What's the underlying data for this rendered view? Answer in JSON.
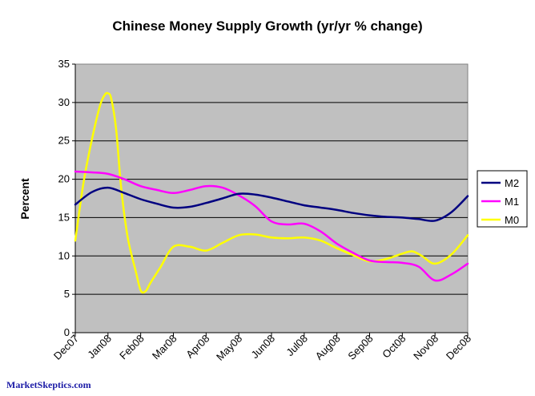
{
  "chart_data": {
    "type": "line",
    "title": "Chinese Money Supply Growth (yr/yr % change)",
    "ylabel": "Percent",
    "xlabel": "",
    "ylim": [
      0,
      35
    ],
    "yticks": [
      0,
      5,
      10,
      15,
      20,
      25,
      30,
      35
    ],
    "categories": [
      "Dec07",
      "Jan08",
      "Feb08",
      "Mar08",
      "Apr08",
      "May08",
      "Jun08",
      "Jul08",
      "Aug08",
      "Sep08",
      "Oct08",
      "Nov08",
      "Dec08"
    ],
    "grid": "horizontal",
    "legend_position": "right",
    "series": [
      {
        "name": "M2",
        "color": "#000080",
        "x": [
          0,
          0.5,
          1,
          1.5,
          2,
          2.5,
          3,
          3.5,
          4,
          4.5,
          5,
          5.5,
          6,
          6.5,
          7,
          7.5,
          8,
          8.5,
          9,
          9.5,
          10,
          10.5,
          11,
          11.5,
          12
        ],
        "values": [
          16.7,
          18.3,
          18.9,
          18.2,
          17.4,
          16.8,
          16.3,
          16.4,
          16.9,
          17.5,
          18.1,
          18.0,
          17.6,
          17.1,
          16.6,
          16.3,
          16.0,
          15.6,
          15.3,
          15.1,
          15.0,
          14.8,
          14.6,
          15.7,
          17.8
        ]
      },
      {
        "name": "M1",
        "color": "#ff00ff",
        "x": [
          0,
          0.5,
          1,
          1.5,
          2,
          2.5,
          3,
          3.5,
          4,
          4.5,
          5,
          5.5,
          6,
          6.5,
          7,
          7.5,
          8,
          8.5,
          9,
          9.5,
          10,
          10.5,
          11,
          11.5,
          12
        ],
        "values": [
          21.0,
          20.9,
          20.7,
          20.0,
          19.1,
          18.6,
          18.2,
          18.6,
          19.1,
          18.9,
          17.9,
          16.5,
          14.5,
          14.1,
          14.2,
          13.2,
          11.6,
          10.4,
          9.4,
          9.2,
          9.1,
          8.6,
          6.8,
          7.6,
          9.0
        ]
      },
      {
        "name": "M0",
        "color": "#ffff00",
        "x": [
          0,
          0.25,
          0.5,
          0.75,
          0.9,
          1.0,
          1.1,
          1.25,
          1.4,
          1.6,
          1.85,
          2.0,
          2.15,
          2.3,
          2.6,
          3.0,
          3.5,
          4.0,
          4.5,
          5.0,
          5.5,
          6.0,
          6.5,
          7.0,
          7.5,
          8.0,
          8.5,
          9.0,
          9.5,
          10.0,
          10.3,
          10.6,
          11.0,
          11.5,
          12.0
        ],
        "values": [
          12.0,
          19.5,
          25.0,
          29.5,
          31.0,
          31.2,
          30.5,
          26.5,
          19.0,
          12.5,
          8.0,
          5.5,
          5.4,
          6.5,
          8.5,
          11.2,
          11.2,
          10.7,
          11.7,
          12.7,
          12.8,
          12.4,
          12.3,
          12.4,
          12.0,
          11.0,
          10.1,
          9.3,
          9.6,
          10.3,
          10.6,
          10.0,
          9.0,
          10.2,
          12.7
        ]
      }
    ]
  },
  "footer": {
    "credit": "MarketSkeptics.com"
  }
}
